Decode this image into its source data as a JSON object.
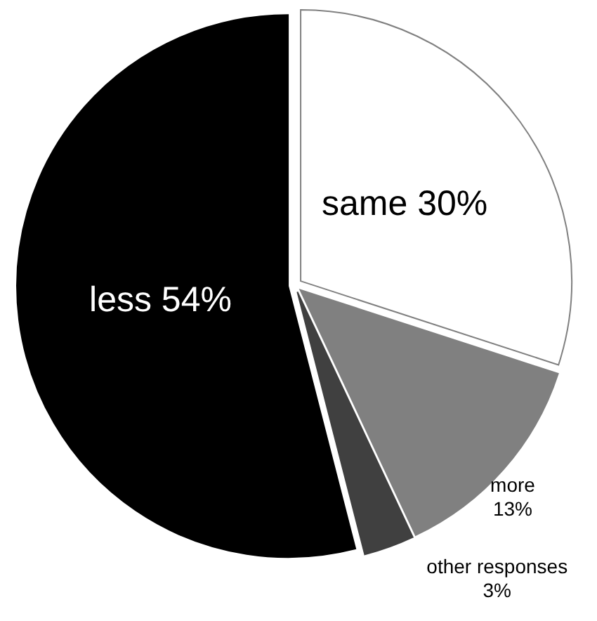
{
  "chart_data": {
    "type": "pie",
    "categories": [
      "same",
      "more",
      "other responses",
      "less"
    ],
    "values": [
      30,
      13,
      3,
      54
    ],
    "value_labels": [
      "30%",
      "13%",
      "3%",
      "54%"
    ],
    "colors": [
      "#ffffff",
      "#808080",
      "#404040",
      "#000000"
    ]
  }
}
